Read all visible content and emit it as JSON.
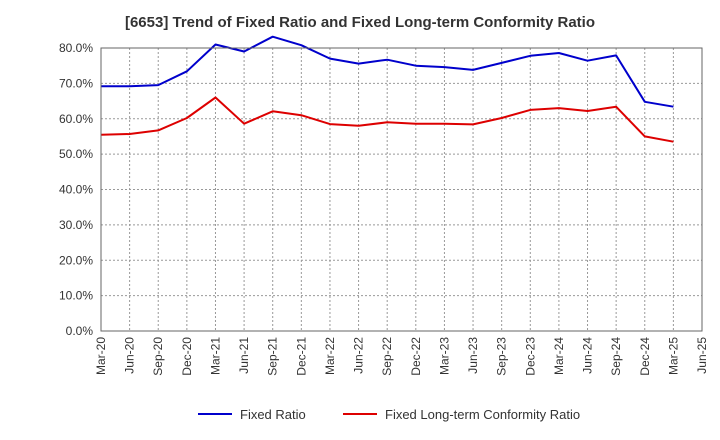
{
  "chart_data": {
    "type": "line",
    "title": "[6653]  Trend of Fixed Ratio and Fixed Long-term Conformity Ratio",
    "xlabel": "",
    "ylabel": "",
    "categories": [
      "Mar-20",
      "Jun-20",
      "Sep-20",
      "Dec-20",
      "Mar-21",
      "Jun-21",
      "Sep-21",
      "Dec-21",
      "Mar-22",
      "Jun-22",
      "Sep-22",
      "Dec-22",
      "Mar-23",
      "Jun-23",
      "Sep-23",
      "Dec-23",
      "Mar-24",
      "Jun-24",
      "Sep-24",
      "Dec-24",
      "Mar-25",
      "Jun-25"
    ],
    "ylim": [
      0,
      80
    ],
    "ytick_values": [
      0,
      10,
      20,
      30,
      40,
      50,
      60,
      70,
      80
    ],
    "ytick_labels": [
      "0.0%",
      "10.0%",
      "20.0%",
      "30.0%",
      "40.0%",
      "50.0%",
      "60.0%",
      "70.0%",
      "80.0%"
    ],
    "grid": true,
    "legend_position": "bottom",
    "series": [
      {
        "name": "Fixed Ratio",
        "color": "#0000cc",
        "values": [
          69.2,
          69.2,
          69.5,
          73.4,
          81.0,
          79.0,
          83.2,
          80.8,
          77.0,
          75.6,
          76.7,
          75.0,
          74.6,
          73.8,
          75.8,
          77.8,
          78.6,
          76.4,
          77.9,
          64.8,
          63.4,
          null
        ]
      },
      {
        "name": "Fixed Long-term Conformity Ratio",
        "color": "#dd0000",
        "values": [
          55.5,
          55.7,
          56.7,
          60.2,
          66.0,
          58.6,
          62.1,
          61.0,
          58.5,
          58.0,
          59.0,
          58.6,
          58.6,
          58.4,
          60.2,
          62.5,
          63.0,
          62.2,
          63.4,
          55.0,
          53.5,
          null
        ]
      }
    ]
  }
}
